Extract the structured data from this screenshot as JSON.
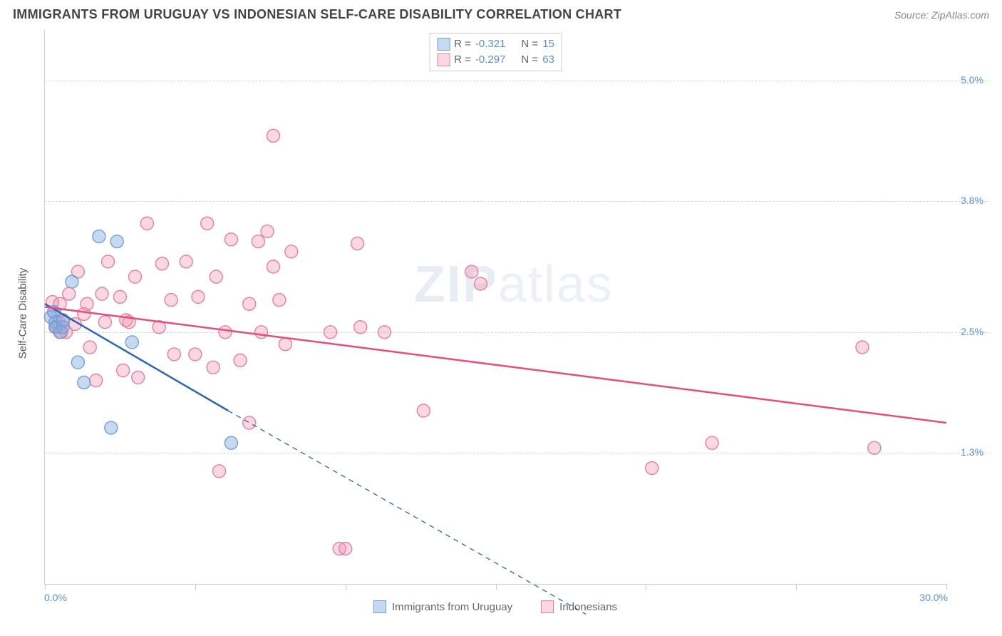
{
  "header": {
    "title": "IMMIGRANTS FROM URUGUAY VS INDONESIAN SELF-CARE DISABILITY CORRELATION CHART",
    "source": "Source: ZipAtlas.com"
  },
  "ylabel": "Self-Care Disability",
  "watermark_a": "ZIP",
  "watermark_b": "atlas",
  "axes": {
    "xlim": [
      0,
      30
    ],
    "ylim": [
      0,
      5.5
    ],
    "x_ticks": [
      0,
      5,
      10,
      15,
      20,
      25,
      30
    ],
    "y_gridlines": [
      1.3,
      2.5,
      3.8,
      5.0
    ],
    "x_start_label": "0.0%",
    "x_end_label": "30.0%",
    "y_labels": [
      "1.3%",
      "2.5%",
      "3.8%",
      "5.0%"
    ],
    "grid_color": "#d8d8d8",
    "axis_color": "#d0d0d0",
    "label_color": "#5b8fd9",
    "label_fontsize": 14
  },
  "series": [
    {
      "id": "uruguay",
      "name": "Immigrants from Uruguay",
      "color_fill": "rgba(130,170,225,0.45)",
      "color_stroke": "#6f9fd8",
      "line_color": "#2b66b8",
      "line_width": 2.5,
      "marker_r": 9,
      "R": "-0.321",
      "N": "15",
      "trend_solid": {
        "x1": 0.0,
        "y1": 2.78,
        "x2": 6.1,
        "y2": 1.72
      },
      "trend_dash": {
        "x1": 6.1,
        "y1": 1.72,
        "x2": 18.0,
        "y2": -0.3
      },
      "points": [
        {
          "x": 0.2,
          "y": 2.65
        },
        {
          "x": 0.3,
          "y": 2.7
        },
        {
          "x": 0.35,
          "y": 2.6
        },
        {
          "x": 0.35,
          "y": 2.55
        },
        {
          "x": 0.5,
          "y": 2.5
        },
        {
          "x": 0.6,
          "y": 2.55
        },
        {
          "x": 0.9,
          "y": 3.0
        },
        {
          "x": 1.1,
          "y": 2.2
        },
        {
          "x": 1.8,
          "y": 3.45
        },
        {
          "x": 2.4,
          "y": 3.4
        },
        {
          "x": 2.2,
          "y": 1.55
        },
        {
          "x": 1.3,
          "y": 2.0
        },
        {
          "x": 2.9,
          "y": 2.4
        },
        {
          "x": 6.2,
          "y": 1.4
        },
        {
          "x": 0.6,
          "y": 2.62
        }
      ]
    },
    {
      "id": "indonesians",
      "name": "Indonesians",
      "color_fill": "rgba(240,140,170,0.35)",
      "color_stroke": "#e57fa0",
      "line_color": "#e94b7a",
      "line_width": 2.5,
      "marker_r": 9,
      "R": "-0.297",
      "N": "63",
      "trend_solid": {
        "x1": 0.0,
        "y1": 2.75,
        "x2": 30.0,
        "y2": 1.6
      },
      "trend_dash": null,
      "points": [
        {
          "x": 0.25,
          "y": 2.8
        },
        {
          "x": 0.3,
          "y": 2.7
        },
        {
          "x": 0.35,
          "y": 2.55
        },
        {
          "x": 0.4,
          "y": 2.55
        },
        {
          "x": 0.45,
          "y": 2.6
        },
        {
          "x": 0.5,
          "y": 2.78
        },
        {
          "x": 0.55,
          "y": 2.5
        },
        {
          "x": 0.6,
          "y": 2.6
        },
        {
          "x": 0.7,
          "y": 2.5
        },
        {
          "x": 0.8,
          "y": 2.88
        },
        {
          "x": 1.0,
          "y": 2.58
        },
        {
          "x": 1.1,
          "y": 3.1
        },
        {
          "x": 1.3,
          "y": 2.68
        },
        {
          "x": 1.4,
          "y": 2.78
        },
        {
          "x": 1.7,
          "y": 2.02
        },
        {
          "x": 1.9,
          "y": 2.88
        },
        {
          "x": 2.0,
          "y": 2.6
        },
        {
          "x": 2.1,
          "y": 3.2
        },
        {
          "x": 2.5,
          "y": 2.85
        },
        {
          "x": 2.6,
          "y": 2.12
        },
        {
          "x": 2.7,
          "y": 2.62
        },
        {
          "x": 2.8,
          "y": 2.6
        },
        {
          "x": 3.1,
          "y": 2.05
        },
        {
          "x": 3.4,
          "y": 3.58
        },
        {
          "x": 3.8,
          "y": 2.55
        },
        {
          "x": 3.9,
          "y": 3.18
        },
        {
          "x": 4.2,
          "y": 2.82
        },
        {
          "x": 4.3,
          "y": 2.28
        },
        {
          "x": 4.7,
          "y": 3.2
        },
        {
          "x": 5.0,
          "y": 2.28
        },
        {
          "x": 5.1,
          "y": 2.85
        },
        {
          "x": 5.4,
          "y": 3.58
        },
        {
          "x": 5.6,
          "y": 2.15
        },
        {
          "x": 5.7,
          "y": 3.05
        },
        {
          "x": 5.8,
          "y": 1.12
        },
        {
          "x": 6.0,
          "y": 2.5
        },
        {
          "x": 6.2,
          "y": 3.42
        },
        {
          "x": 6.5,
          "y": 2.22
        },
        {
          "x": 6.8,
          "y": 2.78
        },
        {
          "x": 6.8,
          "y": 1.6
        },
        {
          "x": 7.1,
          "y": 3.4
        },
        {
          "x": 7.2,
          "y": 2.5
        },
        {
          "x": 7.4,
          "y": 3.5
        },
        {
          "x": 7.6,
          "y": 4.45
        },
        {
          "x": 7.8,
          "y": 2.82
        },
        {
          "x": 7.6,
          "y": 3.15
        },
        {
          "x": 8.0,
          "y": 2.38
        },
        {
          "x": 8.2,
          "y": 3.3
        },
        {
          "x": 9.5,
          "y": 2.5
        },
        {
          "x": 9.8,
          "y": 0.35
        },
        {
          "x": 10.0,
          "y": 0.35
        },
        {
          "x": 10.4,
          "y": 3.38
        },
        {
          "x": 10.5,
          "y": 2.55
        },
        {
          "x": 11.3,
          "y": 2.5
        },
        {
          "x": 12.6,
          "y": 1.72
        },
        {
          "x": 14.2,
          "y": 3.1
        },
        {
          "x": 14.5,
          "y": 2.98
        },
        {
          "x": 20.2,
          "y": 1.15
        },
        {
          "x": 22.2,
          "y": 1.4
        },
        {
          "x": 27.2,
          "y": 2.35
        },
        {
          "x": 27.6,
          "y": 1.35
        },
        {
          "x": 3.0,
          "y": 3.05
        },
        {
          "x": 1.5,
          "y": 2.35
        }
      ]
    }
  ],
  "legend_top": {
    "r_label": "R = ",
    "n_label": "N = "
  },
  "legend_bottom": {
    "items": [
      "Immigrants from Uruguay",
      "Indonesians"
    ]
  }
}
